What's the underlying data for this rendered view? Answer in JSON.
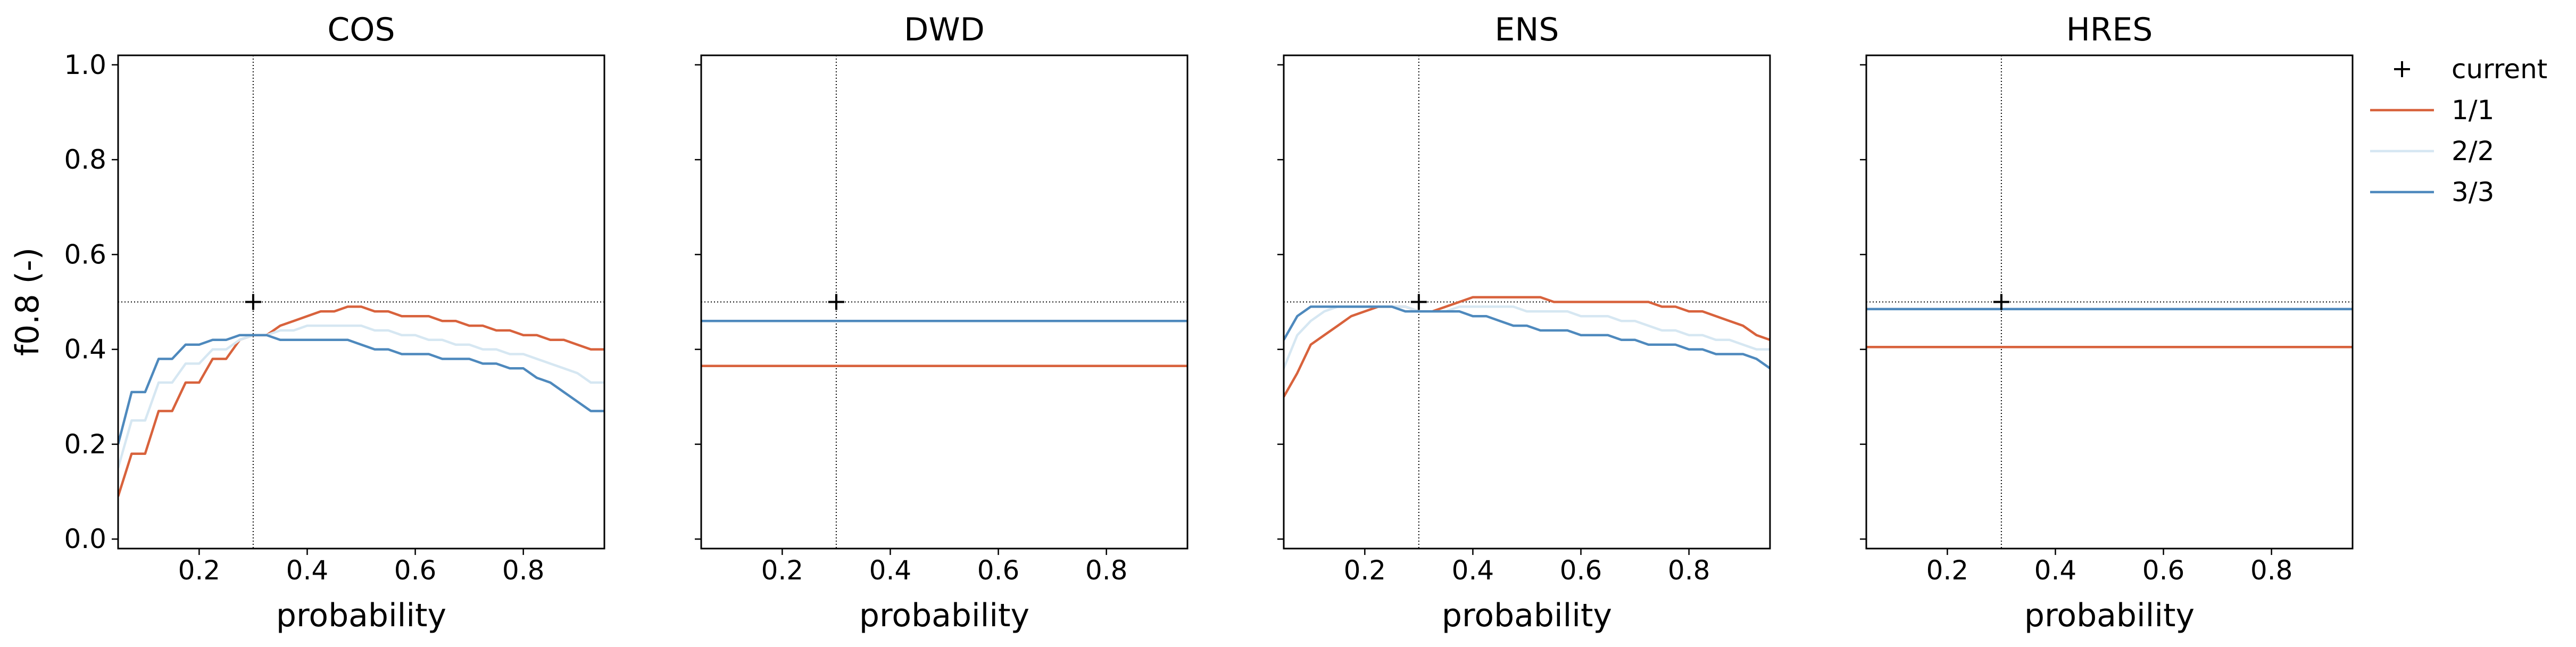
{
  "figure": {
    "ylabel": "f0.8 (-)",
    "xlabel": "probability",
    "legend": [
      {
        "label": "current",
        "marker": "plus",
        "color": "#000000"
      },
      {
        "label": "1/1",
        "color": "#d8623c"
      },
      {
        "label": "2/2",
        "color": "#d6e7f2"
      },
      {
        "label": "3/3",
        "color": "#4e89bd"
      }
    ]
  },
  "chart_data": [
    {
      "type": "line",
      "title": "COS",
      "xlabel": "probability",
      "ylabel": "f0.8 (-)",
      "xlim": [
        0.05,
        0.95
      ],
      "ylim": [
        -0.02,
        1.02
      ],
      "xticks": [
        0.2,
        0.4,
        0.6,
        0.8
      ],
      "yticks": [
        0.0,
        0.2,
        0.4,
        0.6,
        0.8,
        1.0
      ],
      "current": {
        "x": 0.3,
        "y": 0.5
      },
      "reference_lines": {
        "x": 0.3,
        "y": 0.5
      },
      "x": [
        0.05,
        0.075,
        0.1,
        0.125,
        0.15,
        0.175,
        0.2,
        0.225,
        0.25,
        0.275,
        0.3,
        0.325,
        0.35,
        0.375,
        0.4,
        0.425,
        0.45,
        0.475,
        0.5,
        0.525,
        0.55,
        0.575,
        0.6,
        0.625,
        0.65,
        0.675,
        0.7,
        0.725,
        0.75,
        0.775,
        0.8,
        0.825,
        0.85,
        0.875,
        0.9,
        0.925,
        0.95
      ],
      "series": [
        {
          "name": "1/1",
          "color": "#d8623c",
          "values": [
            0.09,
            0.18,
            0.18,
            0.27,
            0.27,
            0.33,
            0.33,
            0.38,
            0.38,
            0.42,
            0.43,
            0.43,
            0.45,
            0.46,
            0.47,
            0.48,
            0.48,
            0.49,
            0.49,
            0.48,
            0.48,
            0.47,
            0.47,
            0.47,
            0.46,
            0.46,
            0.45,
            0.45,
            0.44,
            0.44,
            0.43,
            0.43,
            0.42,
            0.42,
            0.41,
            0.4,
            0.4
          ]
        },
        {
          "name": "2/2",
          "color": "#d6e7f2",
          "values": [
            0.15,
            0.25,
            0.25,
            0.33,
            0.33,
            0.37,
            0.37,
            0.4,
            0.4,
            0.42,
            0.43,
            0.43,
            0.44,
            0.44,
            0.45,
            0.45,
            0.45,
            0.45,
            0.45,
            0.44,
            0.44,
            0.43,
            0.43,
            0.42,
            0.42,
            0.41,
            0.41,
            0.4,
            0.4,
            0.39,
            0.39,
            0.38,
            0.37,
            0.36,
            0.35,
            0.33,
            0.33
          ]
        },
        {
          "name": "3/3",
          "color": "#4e89bd",
          "values": [
            0.2,
            0.31,
            0.31,
            0.38,
            0.38,
            0.41,
            0.41,
            0.42,
            0.42,
            0.43,
            0.43,
            0.43,
            0.42,
            0.42,
            0.42,
            0.42,
            0.42,
            0.42,
            0.41,
            0.4,
            0.4,
            0.39,
            0.39,
            0.39,
            0.38,
            0.38,
            0.38,
            0.37,
            0.37,
            0.36,
            0.36,
            0.34,
            0.33,
            0.31,
            0.29,
            0.27,
            0.27
          ]
        }
      ]
    },
    {
      "type": "line",
      "title": "DWD",
      "xlabel": "probability",
      "xlim": [
        0.05,
        0.95
      ],
      "ylim": [
        -0.02,
        1.02
      ],
      "xticks": [
        0.2,
        0.4,
        0.6,
        0.8
      ],
      "yticks": [
        0.0,
        0.2,
        0.4,
        0.6,
        0.8,
        1.0
      ],
      "current": {
        "x": 0.3,
        "y": 0.5
      },
      "reference_lines": {
        "x": 0.3,
        "y": 0.5
      },
      "x": [
        0.05,
        0.95
      ],
      "series": [
        {
          "name": "1/1",
          "color": "#d8623c",
          "values": [
            0.365,
            0.365
          ]
        },
        {
          "name": "2/2",
          "color": "#d6e7f2",
          "values": [
            0.46,
            0.46
          ]
        },
        {
          "name": "3/3",
          "color": "#4e89bd",
          "values": [
            0.46,
            0.46
          ]
        }
      ]
    },
    {
      "type": "line",
      "title": "ENS",
      "xlabel": "probability",
      "xlim": [
        0.05,
        0.95
      ],
      "ylim": [
        -0.02,
        1.02
      ],
      "xticks": [
        0.2,
        0.4,
        0.6,
        0.8
      ],
      "yticks": [
        0.0,
        0.2,
        0.4,
        0.6,
        0.8,
        1.0
      ],
      "current": {
        "x": 0.3,
        "y": 0.5
      },
      "reference_lines": {
        "x": 0.3,
        "y": 0.5
      },
      "x": [
        0.05,
        0.075,
        0.1,
        0.125,
        0.15,
        0.175,
        0.2,
        0.225,
        0.25,
        0.275,
        0.3,
        0.325,
        0.35,
        0.375,
        0.4,
        0.425,
        0.45,
        0.475,
        0.5,
        0.525,
        0.55,
        0.575,
        0.6,
        0.625,
        0.65,
        0.675,
        0.7,
        0.725,
        0.75,
        0.775,
        0.8,
        0.825,
        0.85,
        0.875,
        0.9,
        0.925,
        0.95
      ],
      "series": [
        {
          "name": "1/1",
          "color": "#d8623c",
          "values": [
            0.3,
            0.35,
            0.41,
            0.43,
            0.45,
            0.47,
            0.48,
            0.49,
            0.49,
            0.49,
            0.48,
            0.48,
            0.49,
            0.5,
            0.51,
            0.51,
            0.51,
            0.51,
            0.51,
            0.51,
            0.5,
            0.5,
            0.5,
            0.5,
            0.5,
            0.5,
            0.5,
            0.5,
            0.49,
            0.49,
            0.48,
            0.48,
            0.47,
            0.46,
            0.45,
            0.43,
            0.42
          ]
        },
        {
          "name": "2/2",
          "color": "#d6e7f2",
          "values": [
            0.36,
            0.43,
            0.46,
            0.48,
            0.49,
            0.49,
            0.49,
            0.49,
            0.49,
            0.49,
            0.48,
            0.48,
            0.48,
            0.49,
            0.49,
            0.49,
            0.49,
            0.49,
            0.48,
            0.48,
            0.48,
            0.48,
            0.47,
            0.47,
            0.47,
            0.46,
            0.46,
            0.45,
            0.44,
            0.44,
            0.43,
            0.43,
            0.42,
            0.42,
            0.41,
            0.4,
            0.4
          ]
        },
        {
          "name": "3/3",
          "color": "#4e89bd",
          "values": [
            0.42,
            0.47,
            0.49,
            0.49,
            0.49,
            0.49,
            0.49,
            0.49,
            0.49,
            0.48,
            0.48,
            0.48,
            0.48,
            0.48,
            0.47,
            0.47,
            0.46,
            0.45,
            0.45,
            0.44,
            0.44,
            0.44,
            0.43,
            0.43,
            0.43,
            0.42,
            0.42,
            0.41,
            0.41,
            0.41,
            0.4,
            0.4,
            0.39,
            0.39,
            0.39,
            0.38,
            0.36
          ]
        }
      ]
    },
    {
      "type": "line",
      "title": "HRES",
      "xlabel": "probability",
      "xlim": [
        0.05,
        0.95
      ],
      "ylim": [
        -0.02,
        1.02
      ],
      "xticks": [
        0.2,
        0.4,
        0.6,
        0.8
      ],
      "yticks": [
        0.0,
        0.2,
        0.4,
        0.6,
        0.8,
        1.0
      ],
      "current": {
        "x": 0.3,
        "y": 0.5
      },
      "reference_lines": {
        "x": 0.3,
        "y": 0.5
      },
      "x": [
        0.05,
        0.95
      ],
      "series": [
        {
          "name": "1/1",
          "color": "#d8623c",
          "values": [
            0.405,
            0.405
          ]
        },
        {
          "name": "2/2",
          "color": "#d6e7f2",
          "values": [
            0.485,
            0.485
          ]
        },
        {
          "name": "3/3",
          "color": "#4e89bd",
          "values": [
            0.485,
            0.485
          ]
        }
      ]
    }
  ]
}
